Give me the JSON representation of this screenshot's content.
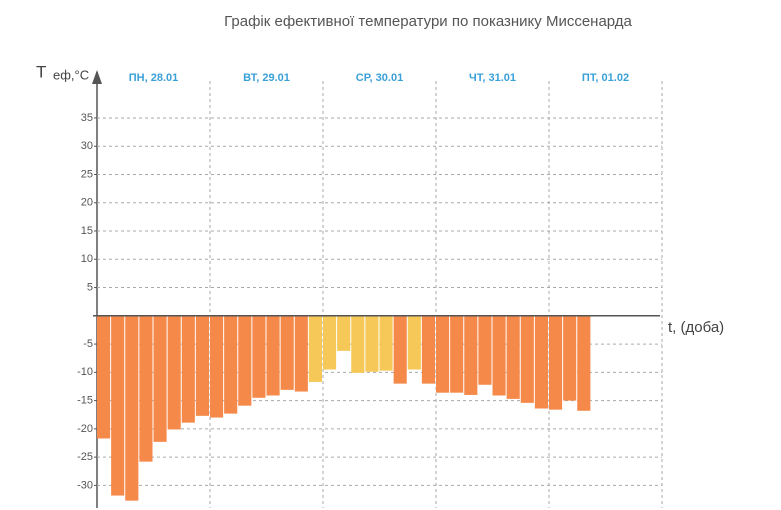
{
  "chart_data": {
    "type": "bar",
    "title": "Графік ефективної температури по показнику Миссенарда",
    "y_label": "T",
    "y_label_sub": "еф,°C",
    "x_label": "t, (доба)",
    "days": [
      "ПН, 28.01",
      "ВТ, 29.01",
      "СР, 30.01",
      "ЧТ, 31.01",
      "ПТ, 01.02"
    ],
    "values": [
      -21.7,
      -31.8,
      -32.7,
      -25.8,
      -22.3,
      -20.1,
      -18.9,
      -17.7,
      -18.0,
      -17.3,
      -15.9,
      -14.5,
      -14.1,
      -13.1,
      -13.4,
      -11.7,
      -9.5,
      -6.2,
      -10.1,
      -9.9,
      -9.7,
      -12.0,
      -9.5,
      -12.0,
      -13.6,
      -13.6,
      -14.0,
      -12.2,
      -14.1,
      -14.7,
      -15.4,
      -16.4,
      -16.6,
      -15.0,
      -16.8
    ],
    "colors": [
      "#f5894a",
      "#f5894a",
      "#f5894a",
      "#f5894a",
      "#f5894a",
      "#f5894a",
      "#f5894a",
      "#f5894a",
      "#f5894a",
      "#f5894a",
      "#f5894a",
      "#f5894a",
      "#f5894a",
      "#f5894a",
      "#f5894a",
      "#f5c858",
      "#f5c858",
      "#f5c858",
      "#f5c858",
      "#f5c858",
      "#f5c858",
      "#f5894a",
      "#f5c858",
      "#f5894a",
      "#f5894a",
      "#f5894a",
      "#f5894a",
      "#f5894a",
      "#f5894a",
      "#f5894a",
      "#f5894a",
      "#f5894a",
      "#f5894a",
      "#f5894a",
      "#f5894a"
    ],
    "day_label_color": "#3aa0d8",
    "ylim": [
      -34,
      38
    ],
    "yticks": [
      -30,
      -25,
      -20,
      -15,
      -10,
      -5,
      5,
      10,
      15,
      20,
      25,
      30,
      35
    ],
    "grid": true
  }
}
